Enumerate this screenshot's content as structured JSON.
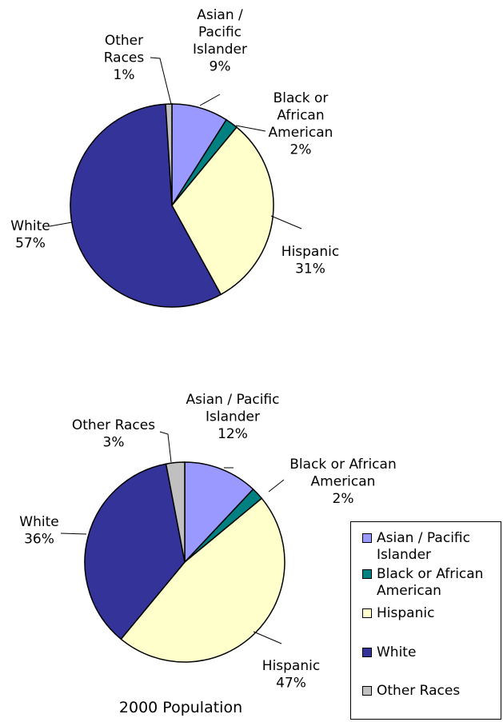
{
  "chart_data": [
    {
      "type": "pie",
      "title": "",
      "categories": [
        "Asian / Pacific Islander",
        "Black or African American",
        "Hispanic",
        "White",
        "Other Races"
      ],
      "values": [
        9,
        2,
        31,
        57,
        1
      ],
      "labels": [
        {
          "lines": [
            "Asian /",
            "Pacific",
            "Islander",
            "9%"
          ]
        },
        {
          "lines": [
            "Black or",
            "African",
            "American",
            "2%"
          ]
        },
        {
          "lines": [
            "Hispanic",
            "31%"
          ]
        },
        {
          "lines": [
            "White",
            "57%"
          ]
        },
        {
          "lines": [
            "Other",
            "Races",
            "1%"
          ]
        }
      ]
    },
    {
      "type": "pie",
      "title": "2000 Population",
      "categories": [
        "Asian / Pacific Islander",
        "Black or African American",
        "Hispanic",
        "White",
        "Other Races"
      ],
      "values": [
        12,
        2,
        47,
        36,
        3
      ],
      "labels": [
        {
          "lines": [
            "Asian / Pacific",
            "Islander",
            "12%"
          ]
        },
        {
          "lines": [
            "Black or African",
            "American",
            "2%"
          ]
        },
        {
          "lines": [
            "Hispanic",
            "47%"
          ]
        },
        {
          "lines": [
            "White",
            "36%"
          ]
        },
        {
          "lines": [
            "Other Races",
            "3%"
          ]
        }
      ]
    }
  ],
  "legend": {
    "items": [
      {
        "label": "Asian / Pacific",
        "label2": "Islander",
        "color": "#9999ff"
      },
      {
        "label": "Black or African",
        "label2": "American",
        "color": "#008080"
      },
      {
        "label": "Hispanic",
        "label2": "",
        "color": "#ffffcc"
      },
      {
        "label": "White",
        "label2": "",
        "color": "#333399"
      },
      {
        "label": "Other Races",
        "label2": "",
        "color": "#c0c0c0"
      }
    ]
  },
  "colors": {
    "asian_pacific": "#9999ff",
    "black_african_american": "#008080",
    "hispanic": "#ffffcc",
    "white": "#333399",
    "other_races": "#c0c0c0"
  }
}
